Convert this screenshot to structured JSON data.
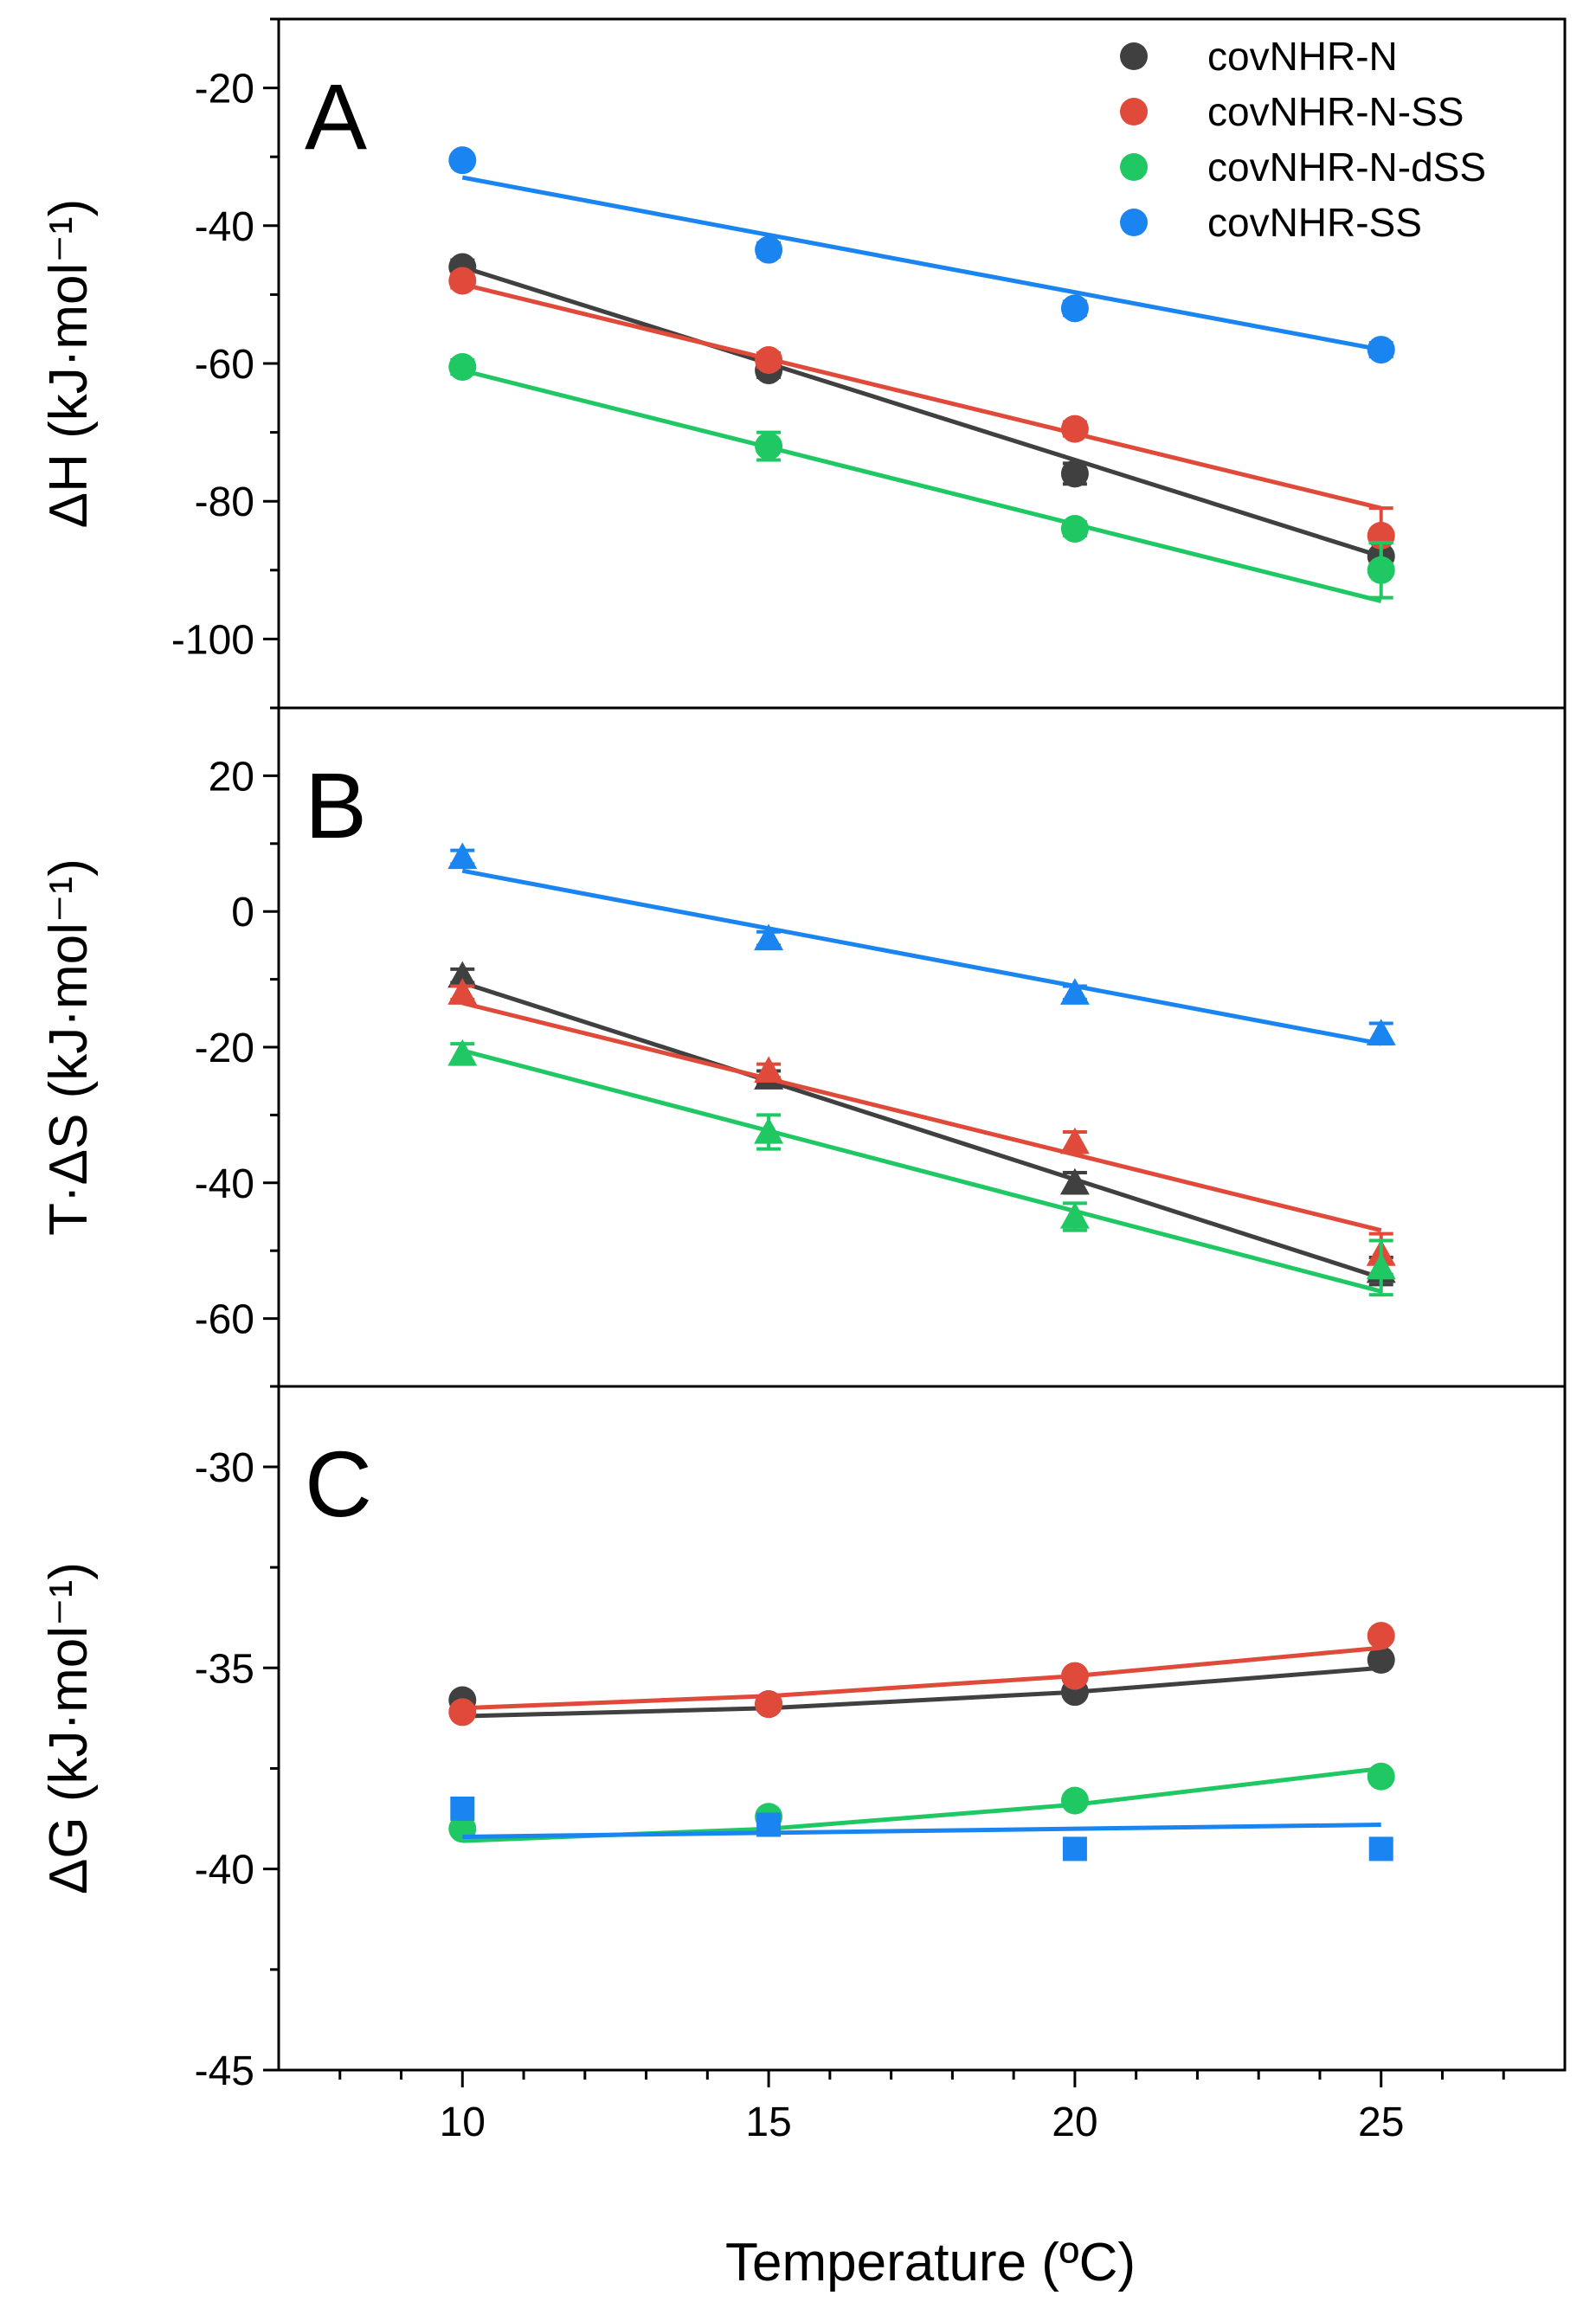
{
  "figure": {
    "xlabel": "Temperature (ºC)",
    "xticks": [
      "10",
      "15",
      "20",
      "25"
    ],
    "xlim": [
      7,
      28
    ]
  },
  "legend": [
    {
      "name": "covNHR-N",
      "color": "#404040"
    },
    {
      "name": "covNHR-N-SS",
      "color": "#e04a3a"
    },
    {
      "name": "covNHR-N-dSS",
      "color": "#1fc863"
    },
    {
      "name": "covNHR-SS",
      "color": "#1a85f0"
    }
  ],
  "chart_data": [
    {
      "type": "scatter",
      "panel": "A",
      "letter": "A",
      "ylabel": "ΔH (kJ·mol⁻¹)",
      "ylim": [
        -110,
        -10
      ],
      "yticks": [
        -20,
        -40,
        -60,
        -80,
        -100
      ],
      "ytick_labels": [
        "-20",
        "-40",
        "-60",
        "-80",
        "-100"
      ],
      "marker": "circle",
      "x": [
        10,
        15,
        20,
        25
      ],
      "series": [
        {
          "name": "covNHR-N",
          "color": "#404040",
          "values": [
            -46,
            -61,
            -76,
            -88
          ],
          "errors": [
            1,
            1,
            1.5,
            2
          ],
          "fit": [
            [
              10,
              -46
            ],
            [
              25,
              -88
            ]
          ]
        },
        {
          "name": "covNHR-N-SS",
          "color": "#e04a3a",
          "values": [
            -48,
            -59.5,
            -69.5,
            -85
          ],
          "errors": [
            1,
            1,
            1,
            4
          ],
          "fit": [
            [
              10,
              -48.5
            ],
            [
              25,
              -81
            ]
          ]
        },
        {
          "name": "covNHR-N-dSS",
          "color": "#1fc863",
          "values": [
            -60.5,
            -72,
            -84,
            -90
          ],
          "errors": [
            1,
            2,
            1,
            4
          ],
          "fit": [
            [
              10,
              -61
            ],
            [
              25,
              -94.5
            ]
          ]
        },
        {
          "name": "covNHR-SS",
          "color": "#1a85f0",
          "values": [
            -30.5,
            -43.5,
            -52,
            -58
          ],
          "errors": [
            0.5,
            1,
            1,
            1
          ],
          "fit": [
            [
              10,
              -33
            ],
            [
              25,
              -58
            ]
          ]
        }
      ]
    },
    {
      "type": "scatter",
      "panel": "B",
      "letter": "B",
      "ylabel": "T·ΔS (kJ·mol⁻¹)",
      "ylim": [
        -70,
        30
      ],
      "yticks": [
        20,
        0,
        -20,
        -40,
        -60
      ],
      "ytick_labels": [
        "20",
        "0",
        "-20",
        "-40",
        "-60"
      ],
      "marker": "triangle",
      "x": [
        10,
        15,
        20,
        25
      ],
      "series": [
        {
          "name": "covNHR-N",
          "color": "#404040",
          "values": [
            -9.5,
            -24.5,
            -40,
            -53
          ],
          "errors": [
            1,
            1,
            1.5,
            2
          ],
          "fit": [
            [
              10,
              -10.5
            ],
            [
              25,
              -54
            ]
          ]
        },
        {
          "name": "covNHR-N-SS",
          "color": "#e04a3a",
          "values": [
            -12,
            -23.5,
            -34,
            -50.5
          ],
          "errors": [
            1,
            1,
            1.5,
            3
          ],
          "fit": [
            [
              10,
              -13.5
            ],
            [
              25,
              -47
            ]
          ]
        },
        {
          "name": "covNHR-N-dSS",
          "color": "#1fc863",
          "values": [
            -21,
            -32.5,
            -45,
            -52.5
          ],
          "errors": [
            1.5,
            2.5,
            2,
            4
          ],
          "fit": [
            [
              10,
              -20.5
            ],
            [
              25,
              -56
            ]
          ]
        },
        {
          "name": "covNHR-SS",
          "color": "#1a85f0",
          "values": [
            8,
            -4,
            -12,
            -18
          ],
          "errors": [
            1,
            1,
            1,
            1.5
          ],
          "fit": [
            [
              10,
              6
            ],
            [
              25,
              -19.5
            ]
          ]
        }
      ]
    },
    {
      "type": "scatter",
      "panel": "C",
      "letter": "C",
      "ylabel": "ΔG (kJ·mol⁻¹)",
      "ylim": [
        -45,
        -28
      ],
      "yticks": [
        -30,
        -35,
        -40,
        -45
      ],
      "ytick_labels": [
        "-30",
        "-35",
        "-40",
        "-45"
      ],
      "marker": "mixed",
      "x": [
        10,
        15,
        20,
        25
      ],
      "series": [
        {
          "name": "covNHR-N",
          "color": "#404040",
          "marker": "circle",
          "values": [
            -35.8,
            -35.9,
            -35.6,
            -34.8
          ],
          "errors": [
            0,
            0,
            0,
            0
          ],
          "fit": [
            [
              10,
              -36.2
            ],
            [
              15,
              -36.0
            ],
            [
              20,
              -35.6
            ],
            [
              25,
              -35.0
            ]
          ]
        },
        {
          "name": "covNHR-N-SS",
          "color": "#e04a3a",
          "marker": "circle",
          "values": [
            -36.1,
            -35.9,
            -35.2,
            -34.2
          ],
          "errors": [
            0,
            0,
            0,
            0
          ],
          "fit": [
            [
              10,
              -36.0
            ],
            [
              15,
              -35.7
            ],
            [
              20,
              -35.2
            ],
            [
              25,
              -34.5
            ]
          ]
        },
        {
          "name": "covNHR-N-dSS",
          "color": "#1fc863",
          "marker": "circle",
          "values": [
            -39.0,
            -38.7,
            -38.3,
            -37.7
          ],
          "errors": [
            0,
            0,
            0,
            0
          ],
          "fit": [
            [
              10,
              -39.3
            ],
            [
              15,
              -39.0
            ],
            [
              20,
              -38.4
            ],
            [
              25,
              -37.5
            ]
          ]
        },
        {
          "name": "covNHR-SS",
          "color": "#1a85f0",
          "marker": "square",
          "values": [
            -38.5,
            -38.9,
            -39.5,
            -39.5
          ],
          "errors": [
            0,
            0,
            0,
            0
          ],
          "fit": [
            [
              10,
              -39.2
            ],
            [
              25,
              -38.9
            ]
          ]
        }
      ]
    }
  ]
}
